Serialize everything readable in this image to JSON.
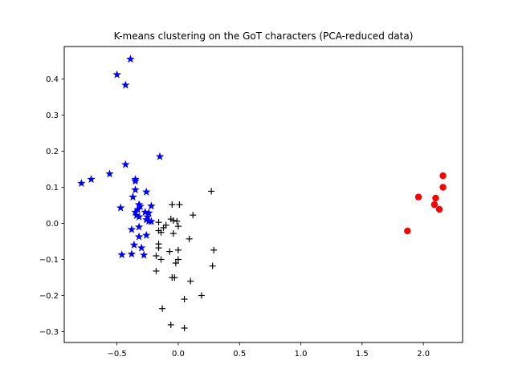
{
  "chart_data": {
    "type": "scatter",
    "title": "K-means clustering on the GoT characters (PCA-reduced data)",
    "xlabel": "",
    "ylabel": "",
    "xlim": [
      -0.93,
      2.32
    ],
    "ylim": [
      -0.33,
      0.49
    ],
    "xticks": [
      -0.5,
      0.0,
      0.5,
      1.0,
      1.5,
      2.0
    ],
    "xtick_labels": [
      "−0.5",
      "0.0",
      "0.5",
      "1.0",
      "1.5",
      "2.0"
    ],
    "yticks": [
      -0.3,
      -0.2,
      -0.1,
      0.0,
      0.1,
      0.2,
      0.3,
      0.4
    ],
    "ytick_labels": [
      "−0.3",
      "−0.2",
      "−0.1",
      "0.0",
      "0.1",
      "0.2",
      "0.3",
      "0.4"
    ],
    "grid": false,
    "legend": false,
    "series": [
      {
        "marker": "star",
        "color": "#0000ff",
        "points": [
          [
            -0.39,
            0.455
          ],
          [
            -0.5,
            0.412
          ],
          [
            -0.43,
            0.383
          ],
          [
            -0.43,
            0.163
          ],
          [
            -0.15,
            0.185
          ],
          [
            -0.56,
            0.137
          ],
          [
            -0.71,
            0.122
          ],
          [
            -0.79,
            0.111
          ],
          [
            -0.35,
            0.122
          ],
          [
            -0.35,
            0.117
          ],
          [
            -0.35,
            0.093
          ],
          [
            -0.26,
            0.087
          ],
          [
            -0.37,
            0.073
          ],
          [
            -0.32,
            0.052
          ],
          [
            -0.31,
            0.047
          ],
          [
            -0.22,
            0.048
          ],
          [
            -0.47,
            0.043
          ],
          [
            -0.33,
            0.038
          ],
          [
            -0.35,
            0.031
          ],
          [
            -0.27,
            0.031
          ],
          [
            -0.24,
            0.029
          ],
          [
            -0.34,
            0.022
          ],
          [
            -0.32,
            0.018
          ],
          [
            -0.25,
            0.018
          ],
          [
            -0.26,
            0.01
          ],
          [
            -0.24,
            0.006
          ],
          [
            -0.22,
            0.005
          ],
          [
            -0.32,
            -0.01
          ],
          [
            -0.38,
            -0.017
          ],
          [
            -0.26,
            -0.033
          ],
          [
            -0.32,
            -0.037
          ],
          [
            -0.36,
            -0.06
          ],
          [
            -0.3,
            -0.068
          ],
          [
            -0.38,
            -0.085
          ],
          [
            -0.46,
            -0.087
          ],
          [
            -0.28,
            -0.088
          ]
        ]
      },
      {
        "marker": "plus",
        "color": "#000000",
        "points": [
          [
            0.27,
            0.089
          ],
          [
            -0.05,
            0.052
          ],
          [
            0.01,
            0.052
          ],
          [
            0.12,
            0.023
          ],
          [
            -0.06,
            0.012
          ],
          [
            -0.04,
            0.008
          ],
          [
            -0.01,
            0.006
          ],
          [
            -0.16,
            0.003
          ],
          [
            -0.1,
            -0.005
          ],
          [
            -0.12,
            -0.012
          ],
          [
            0.0,
            -0.008
          ],
          [
            -0.16,
            -0.02
          ],
          [
            -0.14,
            -0.025
          ],
          [
            -0.04,
            -0.028
          ],
          [
            0.09,
            -0.043
          ],
          [
            -0.16,
            -0.057
          ],
          [
            -0.16,
            -0.068
          ],
          [
            0.29,
            -0.074
          ],
          [
            -0.07,
            -0.078
          ],
          [
            0.0,
            -0.074
          ],
          [
            -0.18,
            -0.09
          ],
          [
            -0.14,
            -0.1
          ],
          [
            -0.02,
            -0.11
          ],
          [
            0.0,
            -0.1
          ],
          [
            0.28,
            -0.118
          ],
          [
            -0.18,
            -0.132
          ],
          [
            -0.05,
            -0.15
          ],
          [
            -0.03,
            -0.15
          ],
          [
            0.1,
            -0.16
          ],
          [
            0.19,
            -0.2
          ],
          [
            0.05,
            -0.21
          ],
          [
            -0.13,
            -0.236
          ],
          [
            -0.06,
            -0.281
          ],
          [
            0.05,
            -0.29
          ]
        ]
      },
      {
        "marker": "circle",
        "color": "#ff0000",
        "points": [
          [
            2.16,
            0.132
          ],
          [
            2.16,
            0.1
          ],
          [
            1.96,
            0.073
          ],
          [
            2.1,
            0.07
          ],
          [
            2.09,
            0.052
          ],
          [
            2.13,
            0.039
          ],
          [
            1.87,
            -0.021
          ]
        ]
      }
    ]
  }
}
